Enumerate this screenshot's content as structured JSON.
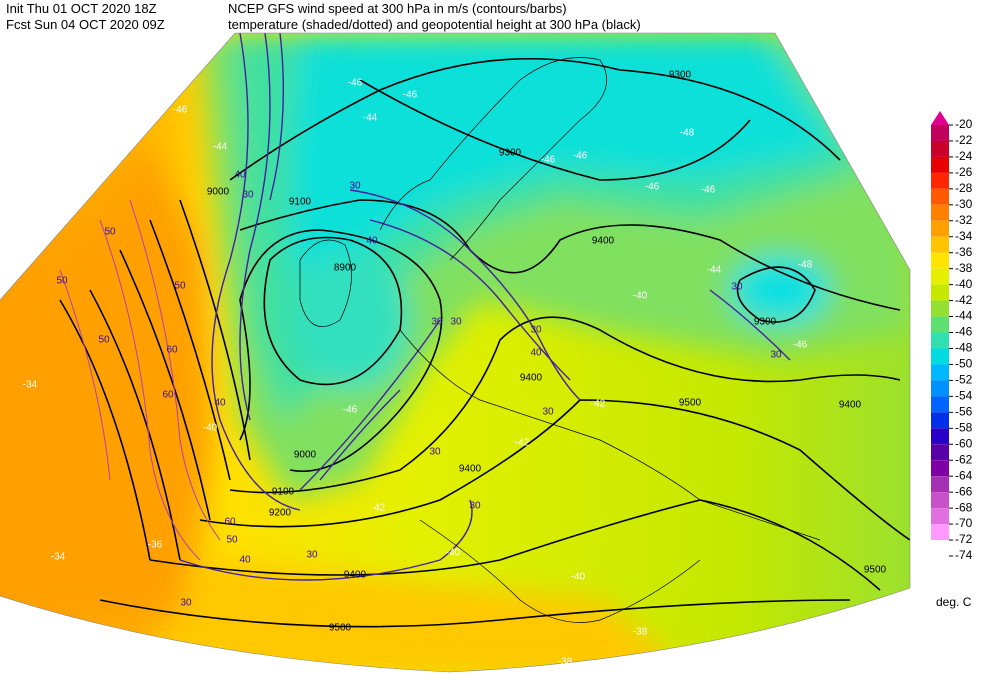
{
  "header": {
    "left": [
      "Init  Thu 01 OCT 2020 18Z",
      "Fcst Sun 04 OCT 2020 09Z"
    ],
    "right": [
      "NCEP GFS wind speed at 300 hPa in m/s (contours/barbs)",
      "temperature (shaded/dotted) and geopotential height at 300 hPa (black)"
    ]
  },
  "colorbar": {
    "labels": [
      -20,
      -22,
      -24,
      -26,
      -28,
      -30,
      -32,
      -34,
      -36,
      -38,
      -40,
      -42,
      -44,
      -46,
      -48,
      -50,
      -52,
      -54,
      -56,
      -58,
      -60,
      -62,
      -64,
      -66,
      -68,
      -70,
      -72,
      -74
    ],
    "colors": [
      "#e0008c",
      "#c0005a",
      "#c8002a",
      "#e80000",
      "#ff2800",
      "#ff5a00",
      "#ff8000",
      "#ffa000",
      "#ffc400",
      "#ffe400",
      "#e4f000",
      "#c4e800",
      "#94e030",
      "#5ee070",
      "#30e0b0",
      "#00dce0",
      "#00b8ff",
      "#0090ff",
      "#0064ff",
      "#0030e8",
      "#2800c8",
      "#5800a8",
      "#8000a8",
      "#a430b4",
      "#c850c8",
      "#e070e0",
      "#ff98ff"
    ],
    "unit": "deg. C"
  },
  "map": {
    "height_labels": [
      9300,
      9300,
      9100,
      9000,
      8900,
      9400,
      9400,
      9500,
      9400,
      9000,
      9100,
      9200,
      9400,
      9300,
      9400,
      9500,
      9500
    ],
    "temperature_labels": [
      -46,
      -44,
      -46,
      -44,
      -46,
      -46,
      -46,
      -48,
      -46,
      -46,
      -44,
      -48,
      -46,
      -40,
      -42,
      -42,
      -38,
      -40,
      -38,
      -34,
      -34,
      -36,
      -40,
      -46,
      -42,
      -40
    ],
    "wind_labels": [
      30,
      40,
      30,
      40,
      50,
      50,
      50,
      50,
      60,
      60,
      40,
      30,
      30,
      30,
      40,
      30,
      30,
      30,
      30,
      40,
      60,
      50,
      30,
      30,
      30
    ]
  }
}
